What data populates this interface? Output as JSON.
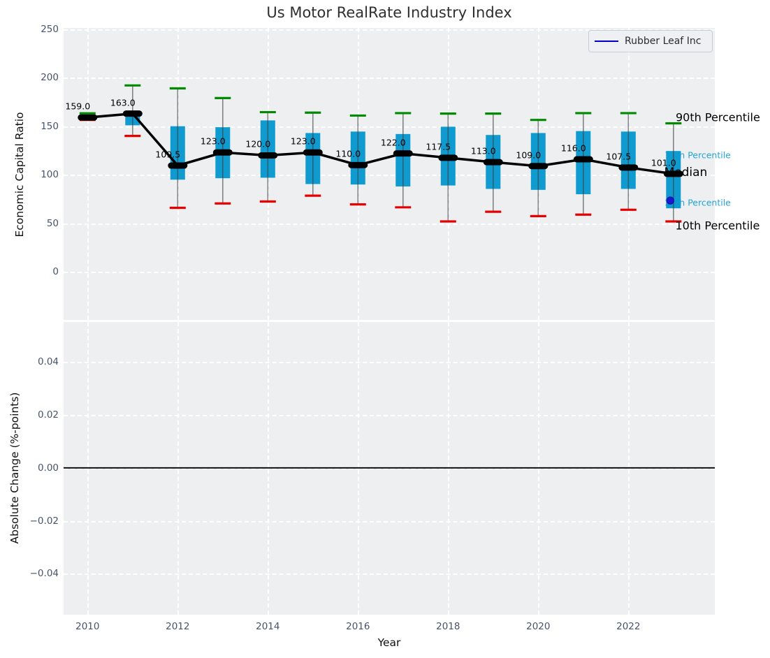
{
  "figure": {
    "title": "Us Motor RealRate Industry Index",
    "legend": {
      "label": "Rubber Leaf Inc",
      "line_color": "#0000cc"
    }
  },
  "colors": {
    "axes_bg": "#edeff1",
    "box_fill": "#0f9ad0",
    "whisker_cap_high": "#028a02",
    "whisker_cap_low": "#e80000",
    "median_line": "#000000",
    "company_marker": "#1a1acd",
    "cyan_annotation": "#25a4d8",
    "black_annotation": "#000000",
    "tick_label": "#46536b"
  },
  "chart_data": [
    {
      "type": "boxplot",
      "title": "Us Motor RealRate Industry Index",
      "ylabel": "Economic Capital Ratio",
      "xlabel": "",
      "ylim": [
        -51,
        250
      ],
      "grid": true,
      "legend_position": "upper right",
      "legend_entries": [
        "Rubber Leaf Inc"
      ],
      "yticks": [
        {
          "v": 0,
          "label": "0"
        },
        {
          "v": 50,
          "label": "50"
        },
        {
          "v": 100,
          "label": "100"
        },
        {
          "v": 150,
          "label": "150"
        },
        {
          "v": 200,
          "label": "200"
        },
        {
          "v": 250,
          "label": "250"
        }
      ],
      "xticks": [
        {
          "v": 2010,
          "label": "2010"
        },
        {
          "v": 2012,
          "label": "2012"
        },
        {
          "v": 2014,
          "label": "2014"
        },
        {
          "v": 2016,
          "label": "2016"
        },
        {
          "v": 2018,
          "label": "2018"
        },
        {
          "v": 2020,
          "label": "2020"
        },
        {
          "v": 2022,
          "label": "2022"
        }
      ],
      "years": [
        2010,
        2011,
        2012,
        2013,
        2014,
        2015,
        2016,
        2017,
        2018,
        2019,
        2020,
        2021,
        2022,
        2023
      ],
      "series": {
        "median": [
          159,
          163,
          109.5,
          123,
          120,
          123,
          110,
          122,
          117.5,
          113,
          109,
          116,
          107.5,
          101
        ],
        "p90": [
          163.3,
          192,
          189,
          179,
          164.5,
          164,
          161,
          163.5,
          163,
          163,
          156.5,
          163.5,
          163.5,
          153
        ],
        "p75": [
          161,
          165,
          150,
          149,
          156,
          143,
          144.5,
          142,
          149.5,
          141,
          143,
          145,
          144.5,
          124.5
        ],
        "p25": [
          157.5,
          151,
          95,
          96.5,
          97,
          90.5,
          90,
          88,
          89,
          85.5,
          84.5,
          80,
          85.5,
          65.5
        ],
        "p10": [
          156.5,
          140,
          66,
          70.5,
          72.5,
          78.5,
          69.5,
          66.5,
          52,
          62,
          57.5,
          59,
          64,
          52
        ]
      },
      "median_labels": [
        "159.0",
        "163.0",
        "109.5",
        "123.0",
        "120.0",
        "123.0",
        "110.0",
        "122.0",
        "117.5",
        "113.0",
        "109.0",
        "116.0",
        "107.5",
        "101.0"
      ],
      "company_point": {
        "name": "Rubber Leaf Inc",
        "year": 2023,
        "value": 73.5
      },
      "annotations": [
        {
          "text": "90th Percentile",
          "role": "p90",
          "color": "#000000",
          "size": 16
        },
        {
          "text": "75th Percentile",
          "role": "p75",
          "color": "#25a4d8",
          "size": 12.5
        },
        {
          "text": "Median",
          "role": "median",
          "color": "#000000",
          "size": 17
        },
        {
          "text": "25th Percentile",
          "role": "p25",
          "color": "#25a4d8",
          "size": 12.5
        },
        {
          "text": "10th Percentile",
          "role": "p10",
          "color": "#000000",
          "size": 16
        }
      ]
    },
    {
      "type": "line",
      "title": "",
      "ylabel": "Absolute Change (%-points)",
      "xlabel": "Year",
      "ylim": [
        -0.055,
        0.055
      ],
      "grid": true,
      "zero_line": 0.0,
      "yticks": [
        {
          "v": 0.04,
          "label": "0.04"
        },
        {
          "v": 0.02,
          "label": "0.02"
        },
        {
          "v": 0.0,
          "label": "0.00"
        },
        {
          "v": -0.02,
          "label": "−0.02"
        },
        {
          "v": -0.04,
          "label": "−0.04"
        }
      ],
      "xticks": [
        {
          "v": 2010,
          "label": "2010"
        },
        {
          "v": 2012,
          "label": "2012"
        },
        {
          "v": 2014,
          "label": "2014"
        },
        {
          "v": 2016,
          "label": "2016"
        },
        {
          "v": 2018,
          "label": "2018"
        },
        {
          "v": 2020,
          "label": "2020"
        },
        {
          "v": 2022,
          "label": "2022"
        }
      ],
      "series": []
    }
  ]
}
